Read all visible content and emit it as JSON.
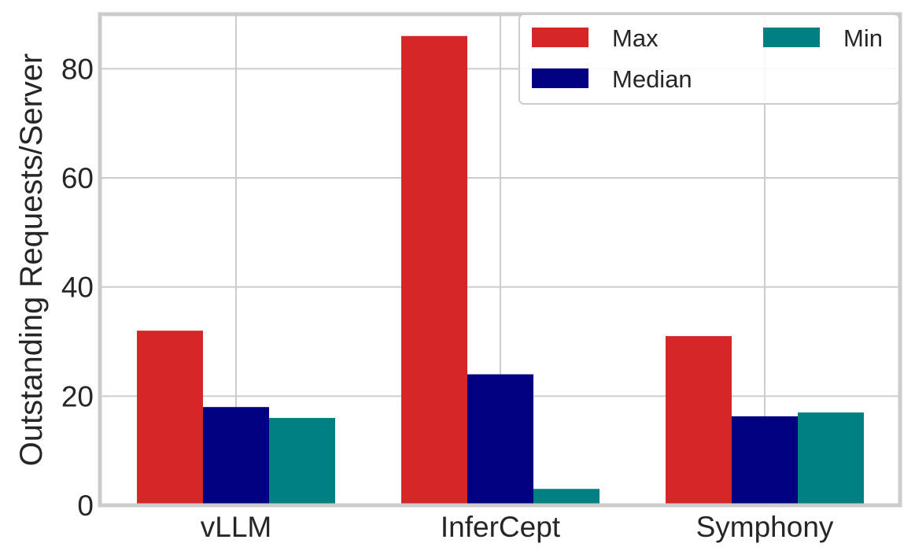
{
  "chart_data": {
    "type": "bar",
    "categories": [
      "vLLM",
      "InferCept",
      "Symphony"
    ],
    "series": [
      {
        "name": "Max",
        "color": "#d62728",
        "values": [
          32,
          86,
          31
        ]
      },
      {
        "name": "Median",
        "color": "#000080",
        "values": [
          18,
          24,
          16.3
        ]
      },
      {
        "name": "Min",
        "color": "#008080",
        "values": [
          16,
          3,
          17
        ]
      }
    ],
    "yticks": [
      0,
      20,
      40,
      60,
      80
    ],
    "ylabel": "Outstanding Requests/Server",
    "xlabel": "",
    "title": "",
    "ylim": [
      0,
      90
    ],
    "grid": true,
    "legend": {
      "position": "top-right",
      "columns": 2
    }
  }
}
